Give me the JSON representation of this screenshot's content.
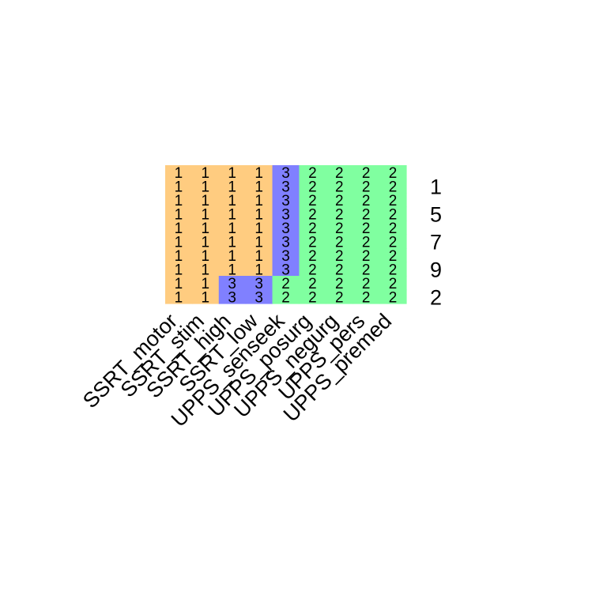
{
  "chart_data": {
    "type": "heatmap",
    "columns": [
      "SSRT_motor",
      "SSRT_stim",
      "SSRT_high",
      "SSRT_low",
      "UPPS_senseek",
      "UPPS_posurg",
      "UPPS_negurg",
      "UPPS_pers",
      "UPPS_premed"
    ],
    "rows": [
      "",
      "1",
      "",
      "5",
      "",
      "7",
      "",
      "9",
      "",
      "2"
    ],
    "cluster_colors": {
      "1": "#FFCC80",
      "2": "#80FFA0",
      "3": "#8080FF"
    },
    "cells": [
      [
        1,
        1,
        1,
        1,
        3,
        2,
        2,
        2,
        2
      ],
      [
        1,
        1,
        1,
        1,
        3,
        2,
        2,
        2,
        2
      ],
      [
        1,
        1,
        1,
        1,
        3,
        2,
        2,
        2,
        2
      ],
      [
        1,
        1,
        1,
        1,
        3,
        2,
        2,
        2,
        2
      ],
      [
        1,
        1,
        1,
        1,
        3,
        2,
        2,
        2,
        2
      ],
      [
        1,
        1,
        1,
        1,
        3,
        2,
        2,
        2,
        2
      ],
      [
        1,
        1,
        1,
        1,
        3,
        2,
        2,
        2,
        2
      ],
      [
        1,
        1,
        1,
        1,
        3,
        2,
        2,
        2,
        2
      ],
      [
        1,
        1,
        3,
        3,
        2,
        2,
        2,
        2,
        2
      ],
      [
        1,
        1,
        3,
        3,
        2,
        2,
        2,
        2,
        2
      ]
    ]
  }
}
